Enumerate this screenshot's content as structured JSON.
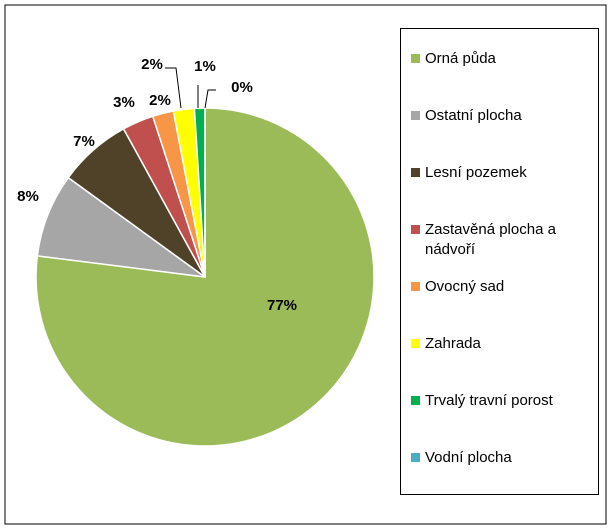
{
  "chart_data": {
    "type": "pie",
    "categories": [
      "Orná půda",
      "Ostatní plocha",
      "Lesní pozemek",
      "Zastavěná plocha a nádvoří",
      "Ovocný sad",
      "Zahrada",
      "Trvalý travní porost",
      "Vodní plocha"
    ],
    "values": [
      77,
      8,
      7,
      3,
      2,
      2,
      1,
      0
    ],
    "colors": [
      "#9BBB59",
      "#A6A6A6",
      "#4F4228",
      "#C0504D",
      "#F79646",
      "#FFFF00",
      "#00B050",
      "#4BACC6"
    ],
    "legend": "right"
  }
}
